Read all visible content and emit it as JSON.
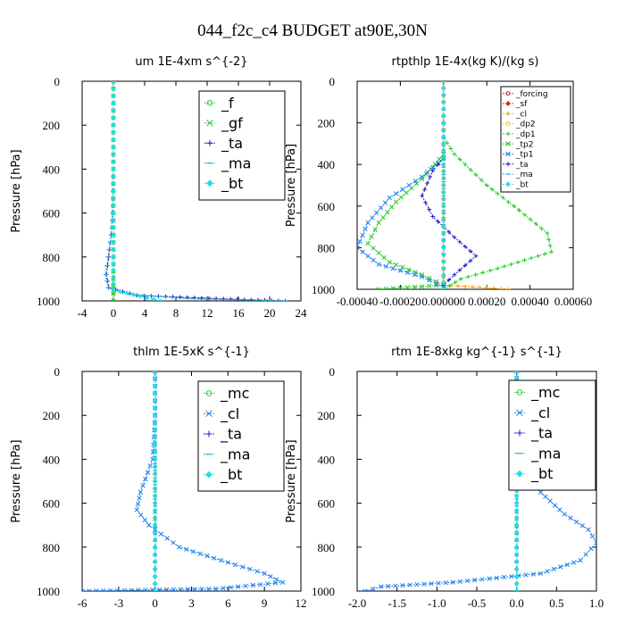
{
  "figure_title": "044_f2c_c4  BUDGET at90E,30N",
  "chart_data": [
    {
      "type": "line",
      "title": "um  1E-4xm s^{-2}",
      "ylabel": "Pressure [hPa]",
      "xlabel": "",
      "xlim": [
        -4,
        24
      ],
      "ylim": [
        1000,
        0
      ],
      "xticks": [
        -4,
        0,
        4,
        8,
        12,
        16,
        20,
        24
      ],
      "xtick_labels": [
        "-4",
        "0",
        "4",
        "8",
        "12",
        "16",
        "20",
        "24"
      ],
      "yticks": [
        0,
        200,
        400,
        600,
        800,
        1000
      ],
      "ytick_labels": [
        "0",
        "200",
        "400",
        "600",
        "800",
        "1000"
      ],
      "legend": {
        "position": "top-right",
        "font_size": 16
      },
      "series": [
        {
          "name": "_f",
          "color": "#33cc33",
          "marker": "circle",
          "points": [
            [
              0,
              0
            ],
            [
              0,
              200
            ],
            [
              0,
              400
            ],
            [
              0,
              600
            ],
            [
              0,
              800
            ],
            [
              0,
              1000
            ]
          ]
        },
        {
          "name": "_gf",
          "color": "#33cc33",
          "marker": "x",
          "points": [
            [
              0,
              0
            ],
            [
              0,
              200
            ],
            [
              0,
              400
            ],
            [
              0,
              600
            ],
            [
              0,
              800
            ],
            [
              0,
              1000
            ]
          ]
        },
        {
          "name": "_ta",
          "color": "#1a1acc",
          "marker": "plus",
          "points": [
            [
              0,
              0
            ],
            [
              0,
              400
            ],
            [
              -0.1,
              600
            ],
            [
              -0.3,
              700
            ],
            [
              -0.6,
              800
            ],
            [
              -0.9,
              880
            ],
            [
              -0.6,
              940
            ],
            [
              3,
              975
            ],
            [
              15,
              992
            ],
            [
              22,
              1000
            ]
          ]
        },
        {
          "name": "_ma",
          "color": "#2aaad4",
          "marker": "dash",
          "points": [
            [
              0,
              0
            ],
            [
              0,
              400
            ],
            [
              -0.1,
              600
            ],
            [
              -0.3,
              700
            ],
            [
              -0.7,
              800
            ],
            [
              -1.0,
              880
            ],
            [
              -0.7,
              940
            ],
            [
              2,
              970
            ],
            [
              10,
              990
            ],
            [
              22,
              1000
            ]
          ]
        },
        {
          "name": "_bt",
          "color": "#22ddee",
          "marker": "diamond",
          "points": [
            [
              0,
              0
            ],
            [
              0,
              200
            ],
            [
              0,
              400
            ],
            [
              0,
              600
            ],
            [
              0,
              800
            ],
            [
              0,
              950
            ],
            [
              6,
              1000
            ]
          ]
        }
      ]
    },
    {
      "type": "line",
      "title": "rtpthlp  1E-4x(kg K)/(kg s)",
      "ylabel": "Pressure [hPa]",
      "xlabel": "",
      "xlim": [
        -0.0004,
        0.0006
      ],
      "ylim": [
        1000,
        0
      ],
      "xticks": [
        -0.0004,
        -0.0002,
        0,
        0.0002,
        0.0004,
        0.0006
      ],
      "xtick_labels": [
        "-0.00040",
        "-0.00020",
        "0.000000",
        "0.00020",
        "0.00040",
        "0.00060"
      ],
      "yticks": [
        0,
        200,
        400,
        600,
        800,
        1000
      ],
      "ytick_labels": [
        "0",
        "200",
        "400",
        "600",
        "800",
        "1000"
      ],
      "legend": {
        "position": "top-right",
        "font_size": 9
      },
      "series": [
        {
          "name": "_forcing",
          "color": "#dd2222",
          "marker": "circle",
          "points": [
            [
              0,
              0
            ],
            [
              0,
              200
            ],
            [
              0,
              400
            ],
            [
              0,
              600
            ],
            [
              0,
              800
            ],
            [
              0,
              1000
            ]
          ]
        },
        {
          "name": "_sf",
          "color": "#dd2222",
          "marker": "diamond",
          "points": [
            [
              0,
              0
            ],
            [
              0,
              200
            ],
            [
              0,
              400
            ],
            [
              0,
              600
            ],
            [
              0,
              800
            ],
            [
              0,
              1000
            ]
          ]
        },
        {
          "name": "_cl",
          "color": "#ff9900",
          "marker": "plus",
          "points": [
            [
              0,
              0
            ],
            [
              0,
              400
            ],
            [
              0,
              800
            ],
            [
              0,
              980
            ],
            [
              0.0003,
              1000
            ]
          ]
        },
        {
          "name": "_dp2",
          "color": "#ffcc00",
          "marker": "circle",
          "points": [
            [
              0,
              0
            ],
            [
              0,
              500
            ],
            [
              0,
              1000
            ]
          ]
        },
        {
          "name": "_dp1",
          "color": "#22cc22",
          "marker": "plus",
          "points": [
            [
              0,
              270
            ],
            [
              5e-05,
              350
            ],
            [
              0.0002,
              500
            ],
            [
              0.00035,
              620
            ],
            [
              0.00048,
              730
            ],
            [
              0.0005,
              820
            ],
            [
              0.00025,
              900
            ],
            [
              8e-05,
              950
            ],
            [
              0,
              1000
            ]
          ]
        },
        {
          "name": "_tp2",
          "color": "#22cc22",
          "marker": "x",
          "points": [
            [
              0,
              350
            ],
            [
              -0.0001,
              470
            ],
            [
              -0.00022,
              580
            ],
            [
              -0.0003,
              680
            ],
            [
              -0.00035,
              780
            ],
            [
              -0.00025,
              870
            ],
            [
              -0.0001,
              930
            ],
            [
              0,
              980
            ],
            [
              -0.0003,
              1000
            ]
          ]
        },
        {
          "name": "_tp1",
          "color": "#1a80ee",
          "marker": "x",
          "points": [
            [
              0,
              370
            ],
            [
              -0.0001,
              460
            ],
            [
              -0.00025,
              560
            ],
            [
              -0.00035,
              680
            ],
            [
              -0.0004,
              800
            ],
            [
              -0.0003,
              880
            ],
            [
              -0.0001,
              940
            ],
            [
              0,
              990
            ]
          ]
        },
        {
          "name": "_ta",
          "color": "#1a1acc",
          "marker": "plus",
          "points": [
            [
              0,
              370
            ],
            [
              -5e-05,
              430
            ],
            [
              -0.0001,
              550
            ],
            [
              -5e-05,
              650
            ],
            [
              5e-05,
              750
            ],
            [
              0.00015,
              840
            ],
            [
              5e-05,
              930
            ],
            [
              0,
              980
            ]
          ]
        },
        {
          "name": "_ma",
          "color": "#2aaad4",
          "marker": "dash",
          "points": [
            [
              0,
              0
            ],
            [
              0,
              1000
            ]
          ]
        },
        {
          "name": "_bt",
          "color": "#22ddee",
          "marker": "diamond",
          "points": [
            [
              0,
              0
            ],
            [
              0,
              400
            ],
            [
              0,
              800
            ],
            [
              0,
              1000
            ]
          ]
        }
      ]
    },
    {
      "type": "line",
      "title": "thlm  1E-5xK s^{-1}",
      "ylabel": "Pressure [hPa]",
      "xlabel": "",
      "xlim": [
        -6,
        12
      ],
      "ylim": [
        1000,
        0
      ],
      "xticks": [
        -6,
        -3,
        0,
        3,
        6,
        9,
        12
      ],
      "xtick_labels": [
        "-6",
        "-3",
        "0",
        "3",
        "6",
        "9",
        "12"
      ],
      "yticks": [
        0,
        200,
        400,
        600,
        800,
        1000
      ],
      "ytick_labels": [
        "0",
        "200",
        "400",
        "600",
        "800",
        "1000"
      ],
      "legend": {
        "position": "top-right",
        "font_size": 16
      },
      "series": [
        {
          "name": "_mc",
          "color": "#33cc33",
          "marker": "circle",
          "points": [
            [
              0,
              0
            ],
            [
              0,
              200
            ],
            [
              0,
              400
            ],
            [
              0,
              600
            ],
            [
              0,
              800
            ],
            [
              0,
              1000
            ]
          ]
        },
        {
          "name": "_cl",
          "color": "#1a80ee",
          "marker": "x",
          "points": [
            [
              0,
              0
            ],
            [
              0,
              200
            ],
            [
              -0.2,
              400
            ],
            [
              -1.2,
              550
            ],
            [
              -1.5,
              630
            ],
            [
              -0.5,
              700
            ],
            [
              2,
              800
            ],
            [
              6,
              870
            ],
            [
              9,
              920
            ],
            [
              10.5,
              960
            ],
            [
              5,
              990
            ],
            [
              -6,
              1000
            ]
          ]
        },
        {
          "name": "_ta",
          "color": "#1a1acc",
          "marker": "plus",
          "points": [
            [
              0,
              0
            ],
            [
              0,
              600
            ],
            [
              0,
              1000
            ]
          ]
        },
        {
          "name": "_ma",
          "color": "#2aaad4",
          "marker": "dash",
          "points": [
            [
              0,
              0
            ],
            [
              0,
              1000
            ]
          ]
        },
        {
          "name": "_bt",
          "color": "#22ddee",
          "marker": "diamond",
          "points": [
            [
              0,
              0
            ],
            [
              0,
              400
            ],
            [
              0,
              800
            ],
            [
              0,
              1000
            ]
          ]
        }
      ]
    },
    {
      "type": "line",
      "title": "rtm  1E-8xkg kg^{-1} s^{-1}",
      "ylabel": "Pressure [hPa]",
      "xlabel": "",
      "xlim": [
        -2.0,
        1.0
      ],
      "ylim": [
        1000,
        0
      ],
      "xticks": [
        -2.0,
        -1.5,
        -1.0,
        -0.5,
        0.0,
        0.5,
        1.0
      ],
      "xtick_labels": [
        "-2.0",
        "-1.5",
        "-1.0",
        "-0.5",
        "0.0",
        "0.5",
        "1.0"
      ],
      "yticks": [
        0,
        200,
        400,
        600,
        800,
        1000
      ],
      "ytick_labels": [
        "0",
        "200",
        "400",
        "600",
        "800",
        "1000"
      ],
      "legend": {
        "position": "top-right",
        "font_size": 16
      },
      "series": [
        {
          "name": "_mc",
          "color": "#33cc33",
          "marker": "circle",
          "points": [
            [
              0,
              0
            ],
            [
              0,
              200
            ],
            [
              0,
              400
            ],
            [
              0,
              600
            ],
            [
              0,
              800
            ],
            [
              0,
              1000
            ]
          ]
        },
        {
          "name": "_cl",
          "color": "#1a80ee",
          "marker": "x",
          "points": [
            [
              0,
              0
            ],
            [
              0,
              150
            ],
            [
              0.1,
              250
            ],
            [
              0,
              350
            ],
            [
              0.05,
              450
            ],
            [
              0.3,
              550
            ],
            [
              0.6,
              650
            ],
            [
              0.9,
              720
            ],
            [
              1.0,
              780
            ],
            [
              0.8,
              860
            ],
            [
              0.3,
              920
            ],
            [
              -0.8,
              960
            ],
            [
              -1.7,
              980
            ],
            [
              -1.9,
              1000
            ]
          ]
        },
        {
          "name": "_ta",
          "color": "#1a1acc",
          "marker": "plus",
          "points": [
            [
              0,
              0
            ],
            [
              0,
              600
            ],
            [
              0,
              1000
            ]
          ]
        },
        {
          "name": "_ma",
          "color": "#2aaad4",
          "marker": "dash",
          "points": [
            [
              0,
              0
            ],
            [
              0,
              1000
            ]
          ]
        },
        {
          "name": "_bt",
          "color": "#22ddee",
          "marker": "diamond",
          "points": [
            [
              0,
              0
            ],
            [
              0,
              400
            ],
            [
              0,
              800
            ],
            [
              0,
              1000
            ]
          ]
        }
      ]
    }
  ]
}
